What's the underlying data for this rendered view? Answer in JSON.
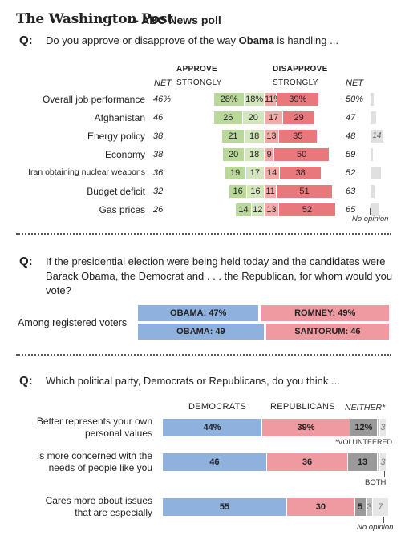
{
  "header": {
    "brand": "The Washington Post",
    "subtitle": "– ABC News poll"
  },
  "colors": {
    "approve_strong": "#b9d89a",
    "approve": "#d3e6bd",
    "disapprove_strong": "#e9787d",
    "disapprove": "#f2aaa8",
    "noop": "#e0e0e0",
    "dem": "#8fb1de",
    "rep": "#ef9aa0",
    "neither": "#9a9a9a",
    "both": "#c6c6c6",
    "none": "#e6e6e6"
  },
  "q1": {
    "tag": "Q:",
    "text_pre": "Do you approve or disapprove of the way ",
    "text_bold": "Obama",
    "text_post": " is handling ...",
    "approve_label": "APPROVE",
    "disapprove_label": "DISAPPROVE",
    "strongly_left": "STRONGLY",
    "strongly_right": "STRONGLY",
    "net_left": "NET",
    "net_right": "NET",
    "no_opinion": "No opinion"
  },
  "q2": {
    "tag": "Q:",
    "text": "If the presidential election were being held today and the candidates were Barack Obama, the Democrat and . . . the Republican, for whom would you vote?",
    "row_label": "Among registered voters"
  },
  "q3": {
    "tag": "Q:",
    "text": "Which political party, Democrats or Republicans, do you think ...",
    "dem_label": "DEMOCRATS",
    "rep_label": "REPUBLICANS",
    "neither_label": "NEITHER*",
    "volunteered": "*VOLUNTEERED",
    "both_label": "BOTH",
    "no_opinion": "No opinion"
  },
  "chart_data": [
    {
      "type": "bar",
      "title": "Do you approve or disapprove of the way Obama is handling ...",
      "categories": [
        "Overall job performance",
        "Afghanistan",
        "Energy policy",
        "Economy",
        "Iran obtaining nuclear weapons",
        "Budget deficit",
        "Gas prices"
      ],
      "series": [
        {
          "name": "Approve strongly",
          "values": [
            28,
            26,
            21,
            20,
            19,
            16,
            14
          ]
        },
        {
          "name": "Approve (not strongly)",
          "values": [
            18,
            20,
            18,
            18,
            17,
            16,
            12
          ]
        },
        {
          "name": "Disapprove (not strongly)",
          "values": [
            11,
            17,
            13,
            9,
            14,
            11,
            13
          ]
        },
        {
          "name": "Disapprove strongly",
          "values": [
            39,
            29,
            35,
            50,
            38,
            51,
            52
          ]
        },
        {
          "name": "No opinion",
          "values": [
            4,
            7,
            14,
            3,
            12,
            5,
            9
          ]
        }
      ],
      "net_approve": [
        "46%",
        "46",
        "38",
        "38",
        "36",
        "32",
        "26"
      ],
      "net_disapprove": [
        "50%",
        "47",
        "48",
        "59",
        "52",
        "63",
        "65"
      ],
      "segment_labels": [
        [
          "28%",
          "18%",
          "11%",
          "39%",
          ""
        ],
        [
          "26",
          "20",
          "17",
          "29",
          ""
        ],
        [
          "21",
          "18",
          "13",
          "35",
          "14"
        ],
        [
          "20",
          "18",
          "9",
          "50",
          ""
        ],
        [
          "19",
          "17",
          "14",
          "38",
          ""
        ],
        [
          "16",
          "16",
          "11",
          "51",
          ""
        ],
        [
          "14",
          "12",
          "13",
          "52",
          ""
        ]
      ]
    },
    {
      "type": "bar",
      "title": "If the presidential election were being held today ...",
      "categories": [
        "Obama vs. Romney",
        "Obama vs. Santorum"
      ],
      "series": [
        {
          "name": "Obama",
          "values": [
            47,
            49
          ],
          "labels": [
            "OBAMA: 47%",
            "OBAMA: 49"
          ]
        },
        {
          "name": "Republican",
          "values": [
            49,
            46
          ],
          "labels": [
            "ROMNEY: 49%",
            "SANTORUM: 46"
          ]
        }
      ]
    },
    {
      "type": "bar",
      "title": "Which political party, Democrats or Republicans, do you think ...",
      "categories": [
        "Better represents your own personal values",
        "Is more concerned with the needs of people like you",
        "Cares more about issues that are especially important to women"
      ],
      "category_lines": [
        [
          "Better represents your own",
          "personal values"
        ],
        [
          "Is more concerned with the",
          "needs of people like you"
        ],
        [
          "Cares more about issues",
          "that are especially"
        ]
      ],
      "series": [
        {
          "name": "Democrats",
          "values": [
            44,
            46,
            55
          ],
          "labels": [
            "44%",
            "46",
            "55"
          ]
        },
        {
          "name": "Republicans",
          "values": [
            39,
            36,
            30
          ],
          "labels": [
            "39%",
            "36",
            "30"
          ]
        },
        {
          "name": "Neither",
          "values": [
            12,
            13,
            5
          ],
          "labels": [
            "12%",
            "13",
            "5"
          ]
        },
        {
          "name": "Both",
          "values": [
            1,
            1,
            3
          ],
          "labels": [
            "",
            "",
            "3"
          ]
        },
        {
          "name": "No opinion",
          "values": [
            3,
            3,
            7
          ],
          "labels": [
            "3",
            "3",
            "7"
          ]
        }
      ]
    }
  ]
}
